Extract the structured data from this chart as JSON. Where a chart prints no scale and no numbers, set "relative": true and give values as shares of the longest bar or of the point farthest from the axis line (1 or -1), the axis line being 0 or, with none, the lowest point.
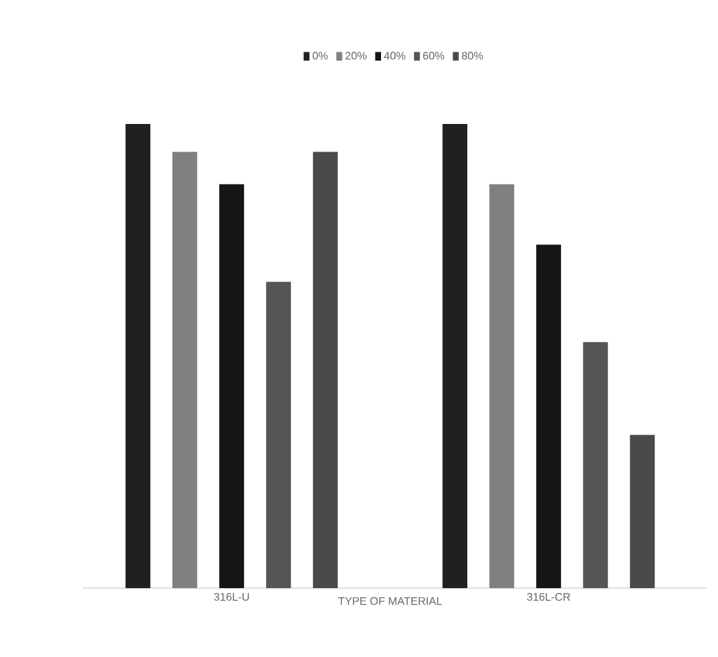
{
  "chart_data": {
    "type": "bar",
    "relative": true,
    "xlabel": "TYPE OF MATERIAL",
    "legend": "top",
    "categories": [
      "316L-U",
      "316L-CR"
    ],
    "series": [
      {
        "name": "0%",
        "color": "#202020",
        "values": [
          1.0,
          1.0
        ]
      },
      {
        "name": "20%",
        "color": "#808080",
        "values": [
          0.94,
          0.87
        ]
      },
      {
        "name": "40%",
        "color": "#151515",
        "values": [
          0.87,
          0.74
        ]
      },
      {
        "name": "60%",
        "color": "#555555",
        "values": [
          0.66,
          0.53
        ]
      },
      {
        "name": "80%",
        "color": "#4a4a4a",
        "values": [
          0.94,
          0.33
        ]
      }
    ]
  }
}
